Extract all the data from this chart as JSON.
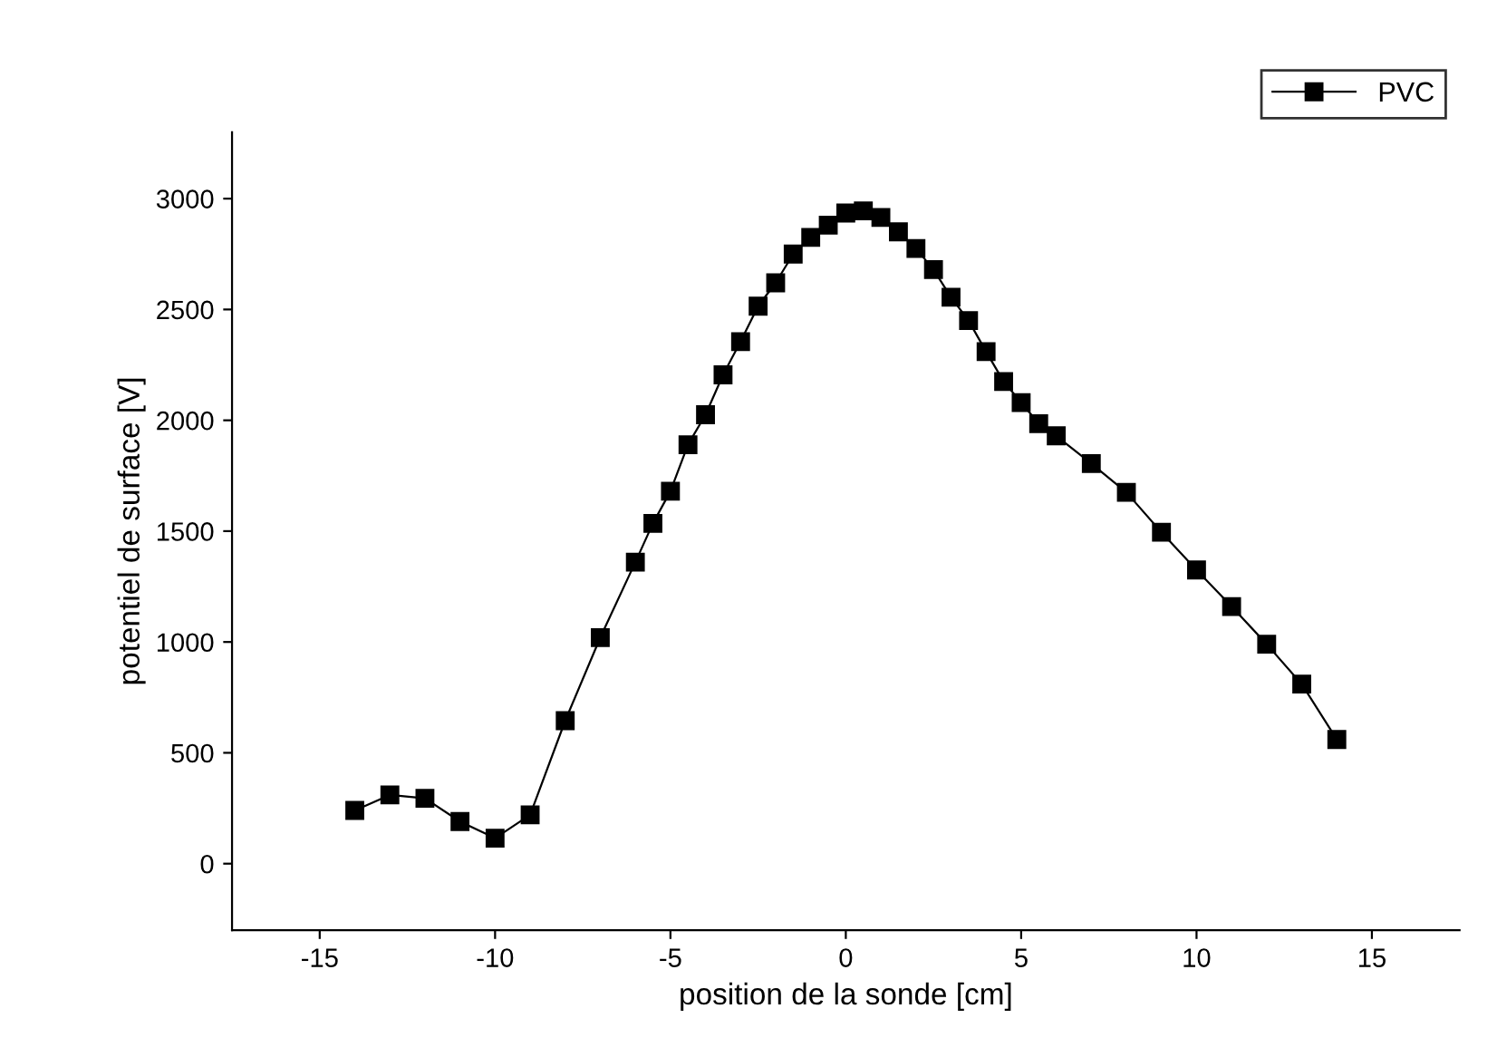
{
  "chart_data": {
    "type": "line",
    "xlabel": "position de la sonde [cm]",
    "ylabel": "potentiel de surface [V]",
    "x": [
      -14,
      -13,
      -12,
      -11,
      -10,
      -9,
      -8,
      -7,
      -6,
      -5.5,
      -5,
      -4.5,
      -4,
      -3.5,
      -3,
      -2.5,
      -2,
      -1.5,
      -1,
      -0.5,
      0,
      0.5,
      1,
      1.5,
      2,
      2.5,
      3,
      3.5,
      4,
      4.5,
      5,
      5.5,
      6,
      7,
      8,
      9,
      10,
      11,
      12,
      13,
      14
    ],
    "series": [
      {
        "name": "PVC",
        "color": "#000000",
        "values": [
          240,
          310,
          295,
          190,
          115,
          220,
          645,
          1020,
          1360,
          1535,
          1680,
          1890,
          2025,
          2205,
          2355,
          2515,
          2620,
          2750,
          2825,
          2880,
          2935,
          2945,
          2915,
          2850,
          2775,
          2680,
          2555,
          2450,
          2310,
          2175,
          2080,
          1985,
          1930,
          1805,
          1675,
          1495,
          1325,
          1160,
          990,
          810,
          560
        ]
      }
    ],
    "xlim": [
      -17.5,
      17.5
    ],
    "ylim": [
      -300,
      3300
    ],
    "xticks": [
      -15,
      -10,
      -5,
      0,
      5,
      10,
      15
    ],
    "yticks": [
      0,
      500,
      1000,
      1500,
      2000,
      2500,
      3000
    ],
    "marker": "square",
    "line_style": "solid",
    "grid": false,
    "legend": "top right"
  }
}
